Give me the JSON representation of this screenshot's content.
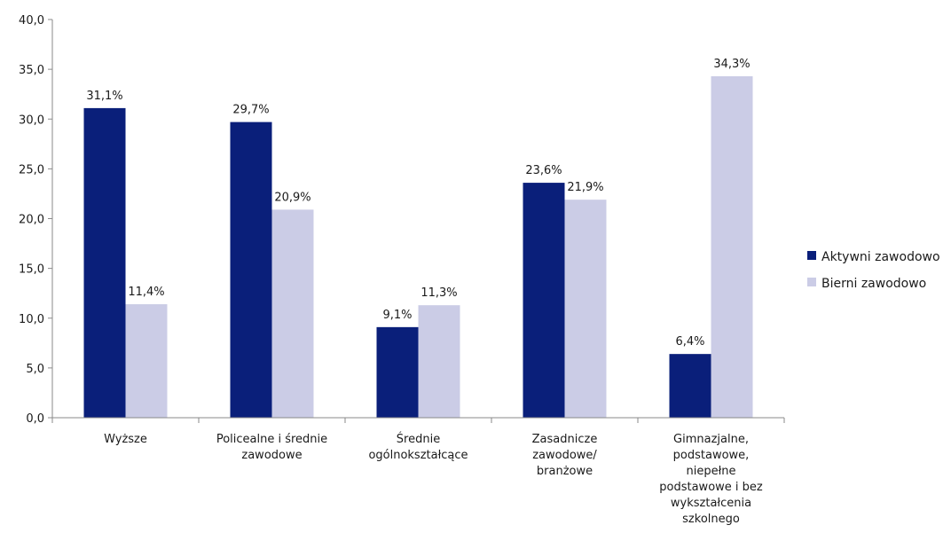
{
  "chart_data": {
    "type": "bar",
    "categories": [
      [
        "Wyższe"
      ],
      [
        "Policealne i średnie",
        "zawodowe"
      ],
      [
        "Średnie",
        "ogólnokształcące"
      ],
      [
        "Zasadnicze",
        "zawodowe/",
        "branżowe"
      ],
      [
        "Gimnazjalne,",
        "podstawowe,",
        "niepełne",
        "podstawowe i bez",
        "wykształcenia",
        "szkolnego"
      ]
    ],
    "series": [
      {
        "name": "Aktywni zawodowo",
        "color": "#0a1f7a",
        "values": [
          31.1,
          29.7,
          9.1,
          23.6,
          6.4
        ],
        "labels": [
          "31,1%",
          "29,7%",
          "9,1%",
          "23,6%",
          "6,4%"
        ]
      },
      {
        "name": "Bierni zawodowo",
        "color": "#cbcce6",
        "values": [
          11.4,
          20.9,
          11.3,
          21.9,
          34.3
        ],
        "labels": [
          "11,4%",
          "20,9%",
          "11,3%",
          "21,9%",
          "34,3%"
        ]
      }
    ],
    "ylim": [
      0,
      40
    ],
    "yticks": [
      0,
      5,
      10,
      15,
      20,
      25,
      30,
      35,
      40
    ],
    "yticklabels": [
      "0,0",
      "5,0",
      "10,0",
      "15,0",
      "20,0",
      "25,0",
      "30,0",
      "35,0",
      "40,0"
    ],
    "grid": false,
    "legend": "right"
  }
}
